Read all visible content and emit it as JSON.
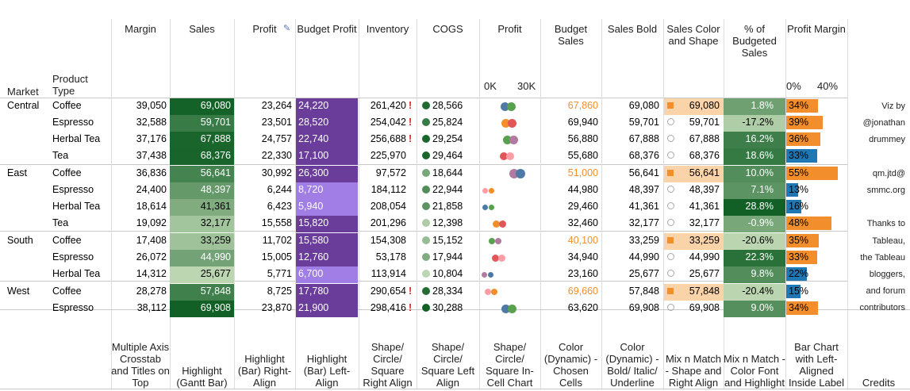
{
  "headers": {
    "market": "Market",
    "product_type": "Product Type",
    "cols": [
      "Margin",
      "Sales",
      "Profit",
      "Budget Profit",
      "Inventory",
      "COGS",
      "Profit",
      "Budget Sales",
      "Sales Bold",
      "Sales Color and Shape",
      "% of Budgeted Sales",
      "Profit Margin"
    ],
    "profit_axis": [
      "0K",
      "30K"
    ],
    "margin_axis": [
      "0%",
      "40%"
    ]
  },
  "footer": [
    "Multiple Axis Crosstab and Titles on Top",
    "Highlight (Gantt Bar)",
    "Highlight (Bar) Right-Align",
    "Highlight (Bar) Left-Align",
    "Shape/ Circle/ Square Right Align",
    "Shape/ Circle/ Square Left Align",
    "Shape/ Circle/ Square In-Cell Chart",
    "Color (Dynamic) - Chosen Cells",
    "Color (Dynamic) - Bold/ Italic/ Underline",
    "Mix n Match - Shape and Right Align",
    "Mix n Match - Color Font and Highlight",
    "Bar Chart with Left-Aligned Inside Label",
    "Credits"
  ],
  "credits": [
    "Viz by",
    "@jonathan",
    "drummey",
    "",
    "qm.jtd@",
    "smmc.org",
    "",
    "Thanks to",
    "Tableau,",
    "the Tableau",
    "bloggers,",
    "and forum",
    "contributors"
  ],
  "colors": {
    "accent_orange": "#f28e2b",
    "purple_dark": "#6a3d9a",
    "purple_light": "#a07ee6",
    "blue": "#1f77b4"
  },
  "rows": [
    {
      "market": "Central",
      "product": "Coffee",
      "margin": "39,050",
      "sales": "69,080",
      "profit": "23,264",
      "budget_profit": "24,220",
      "inventory": "261,420",
      "inv_flag": true,
      "cogs": "28,566",
      "budget_sales": "67,860",
      "bs_orange": true,
      "sales_bold": "69,080",
      "scs": "69,080",
      "scs_sq": true,
      "pct": "1.8%",
      "pm": "34%",
      "pm_val": 34,
      "pm_color": "#f28e2b",
      "profit_num": 23264
    },
    {
      "market": "",
      "product": "Espresso",
      "margin": "32,588",
      "sales": "59,701",
      "profit": "23,501",
      "budget_profit": "28,520",
      "inventory": "254,042",
      "inv_flag": true,
      "cogs": "25,824",
      "budget_sales": "69,940",
      "bs_orange": false,
      "sales_bold": "59,701",
      "scs": "59,701",
      "scs_sq": false,
      "pct": "-17.2%",
      "pm": "39%",
      "pm_val": 39,
      "pm_color": "#f28e2b",
      "profit_num": 23501
    },
    {
      "market": "",
      "product": "Herbal Tea",
      "margin": "37,176",
      "sales": "67,888",
      "profit": "24,757",
      "budget_profit": "22,740",
      "inventory": "256,688",
      "inv_flag": true,
      "cogs": "29,254",
      "budget_sales": "56,880",
      "bs_orange": false,
      "sales_bold": "67,888",
      "scs": "67,888",
      "scs_sq": false,
      "pct": "16.2%",
      "pm": "36%",
      "pm_val": 36,
      "pm_color": "#f28e2b",
      "profit_num": 24757
    },
    {
      "market": "",
      "product": "Tea",
      "margin": "37,438",
      "sales": "68,376",
      "profit": "22,330",
      "budget_profit": "17,100",
      "inventory": "225,970",
      "inv_flag": false,
      "cogs": "29,464",
      "budget_sales": "55,680",
      "bs_orange": false,
      "sales_bold": "68,376",
      "scs": "68,376",
      "scs_sq": false,
      "pct": "18.6%",
      "pm": "33%",
      "pm_val": 33,
      "pm_color": "#1f77b4",
      "profit_num": 22330
    },
    {
      "market": "East",
      "product": "Coffee",
      "margin": "36,836",
      "sales": "56,641",
      "profit": "30,992",
      "budget_profit": "26,300",
      "inventory": "97,572",
      "inv_flag": false,
      "cogs": "18,644",
      "budget_sales": "51,000",
      "bs_orange": true,
      "sales_bold": "56,641",
      "scs": "56,641",
      "scs_sq": true,
      "pct": "10.0%",
      "pm": "55%",
      "pm_val": 55,
      "pm_color": "#f28e2b",
      "profit_num": 30992
    },
    {
      "market": "",
      "product": "Espresso",
      "margin": "24,400",
      "sales": "48,397",
      "profit": "6,244",
      "budget_profit": "8,720",
      "inventory": "184,112",
      "inv_flag": false,
      "cogs": "22,944",
      "budget_sales": "44,980",
      "bs_orange": false,
      "sales_bold": "48,397",
      "scs": "48,397",
      "scs_sq": false,
      "pct": "7.1%",
      "pm": "13%",
      "pm_val": 13,
      "pm_color": "#1f77b4",
      "profit_num": 6244
    },
    {
      "market": "",
      "product": "Herbal Tea",
      "margin": "18,614",
      "sales": "41,361",
      "profit": "6,423",
      "budget_profit": "5,940",
      "inventory": "208,054",
      "inv_flag": false,
      "cogs": "21,858",
      "budget_sales": "29,460",
      "bs_orange": false,
      "sales_bold": "41,361",
      "scs": "41,361",
      "scs_sq": false,
      "pct": "28.8%",
      "pm": "16%",
      "pm_val": 16,
      "pm_color": "#1f77b4",
      "profit_num": 6423
    },
    {
      "market": "",
      "product": "Tea",
      "margin": "19,092",
      "sales": "32,177",
      "profit": "15,558",
      "budget_profit": "15,820",
      "inventory": "201,296",
      "inv_flag": false,
      "cogs": "12,398",
      "budget_sales": "32,460",
      "bs_orange": false,
      "sales_bold": "32,177",
      "scs": "32,177",
      "scs_sq": false,
      "pct": "-0.9%",
      "pm": "48%",
      "pm_val": 48,
      "pm_color": "#f28e2b",
      "profit_num": 15558
    },
    {
      "market": "South",
      "product": "Coffee",
      "margin": "17,408",
      "sales": "33,259",
      "profit": "11,702",
      "budget_profit": "15,580",
      "inventory": "154,308",
      "inv_flag": false,
      "cogs": "15,152",
      "budget_sales": "40,100",
      "bs_orange": true,
      "sales_bold": "33,259",
      "scs": "33,259",
      "scs_sq": true,
      "pct": "-20.6%",
      "pm": "35%",
      "pm_val": 35,
      "pm_color": "#f28e2b",
      "profit_num": 11702
    },
    {
      "market": "",
      "product": "Espresso",
      "margin": "26,072",
      "sales": "44,990",
      "profit": "15,005",
      "budget_profit": "12,760",
      "inventory": "53,178",
      "inv_flag": false,
      "cogs": "17,944",
      "budget_sales": "34,940",
      "bs_orange": false,
      "sales_bold": "44,990",
      "scs": "44,990",
      "scs_sq": false,
      "pct": "22.3%",
      "pm": "33%",
      "pm_val": 33,
      "pm_color": "#f28e2b",
      "profit_num": 15005
    },
    {
      "market": "",
      "product": "Herbal Tea",
      "margin": "14,312",
      "sales": "25,677",
      "profit": "5,771",
      "budget_profit": "6,700",
      "inventory": "113,914",
      "inv_flag": false,
      "cogs": "10,804",
      "budget_sales": "23,160",
      "bs_orange": false,
      "sales_bold": "25,677",
      "scs": "25,677",
      "scs_sq": false,
      "pct": "9.8%",
      "pm": "22%",
      "pm_val": 22,
      "pm_color": "#1f77b4",
      "profit_num": 5771
    },
    {
      "market": "West",
      "product": "Coffee",
      "margin": "28,278",
      "sales": "57,848",
      "profit": "8,725",
      "budget_profit": "17,780",
      "inventory": "290,654",
      "inv_flag": true,
      "cogs": "28,334",
      "budget_sales": "69,660",
      "bs_orange": true,
      "sales_bold": "57,848",
      "scs": "57,848",
      "scs_sq": true,
      "pct": "-20.4%",
      "pm": "15%",
      "pm_val": 15,
      "pm_color": "#1f77b4",
      "profit_num": 8725
    },
    {
      "market": "",
      "product": "Espresso",
      "margin": "38,112",
      "sales": "69,908",
      "profit": "23,870",
      "budget_profit": "21,900",
      "inventory": "298,416",
      "inv_flag": true,
      "cogs": "30,288",
      "budget_sales": "63,620",
      "bs_orange": false,
      "sales_bold": "69,908",
      "scs": "69,908",
      "scs_sq": false,
      "pct": "9.0%",
      "pm": "34%",
      "pm_val": 34,
      "pm_color": "#f28e2b",
      "profit_num": 23870
    }
  ]
}
